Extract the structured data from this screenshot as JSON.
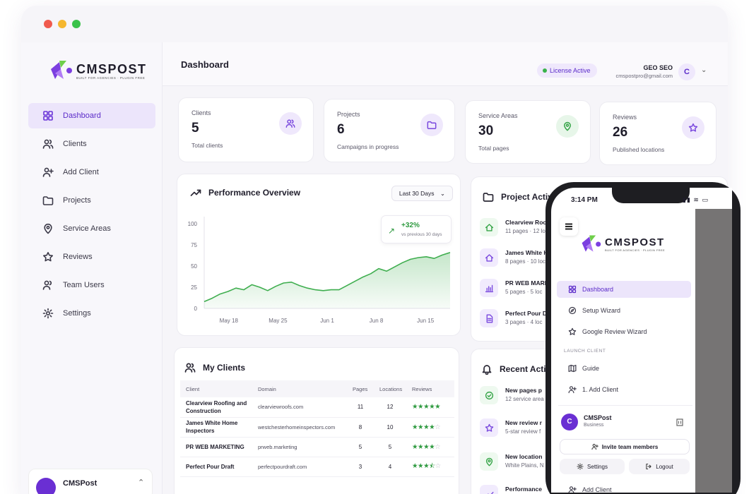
{
  "brand": {
    "name": "CMSPOST",
    "tagline": "BUILT FOR AGENCIES · PLUGIN FREE",
    "colors": {
      "primary": "#6a35d8",
      "accent": "#35a447"
    }
  },
  "sidebar": {
    "items": [
      {
        "label": "Dashboard",
        "icon": "grid-icon"
      },
      {
        "label": "Clients",
        "icon": "users-icon"
      },
      {
        "label": "Add Client",
        "icon": "user-plus-icon"
      },
      {
        "label": "Projects",
        "icon": "folder-icon"
      },
      {
        "label": "Service Areas",
        "icon": "map-pin-icon"
      },
      {
        "label": "Reviews",
        "icon": "star-icon"
      },
      {
        "label": "Team Users",
        "icon": "team-icon"
      },
      {
        "label": "Settings",
        "icon": "gear-icon"
      }
    ],
    "user": {
      "name": "CMSPost"
    }
  },
  "header": {
    "title": "Dashboard",
    "license": "License Active",
    "account": {
      "name": "GEO SEO",
      "email": "cmspostpro@gmail.com",
      "initial": "C"
    }
  },
  "stats": [
    {
      "label": "Clients",
      "value": "5",
      "sub": "Total clients"
    },
    {
      "label": "Projects",
      "value": "6",
      "sub": "Campaigns in progress"
    },
    {
      "label": "Service Areas",
      "value": "30",
      "sub": "Total pages"
    },
    {
      "label": "Reviews",
      "value": "26",
      "sub": "Published locations"
    }
  ],
  "performance": {
    "title": "Performance Overview",
    "range": "Last 30 Days",
    "growth": {
      "value": "+32%",
      "compare": "vs previous 30 days"
    }
  },
  "chart_data": {
    "type": "area",
    "title": "Performance Overview",
    "yticks": [
      "100",
      "75",
      "50",
      "25",
      "0"
    ],
    "xticks": [
      "May 18",
      "May 25",
      "Jun 1",
      "Jun 8",
      "Jun 15"
    ],
    "ylim": [
      0,
      100
    ],
    "values": [
      8,
      12,
      17,
      20,
      24,
      22,
      28,
      25,
      21,
      26,
      30,
      31,
      27,
      24,
      22,
      21,
      22,
      22,
      27,
      32,
      37,
      41,
      47,
      44,
      49,
      54,
      58,
      60,
      61,
      59,
      63,
      66
    ],
    "color": "#3fae4f",
    "grid": false
  },
  "project_activity": {
    "title": "Project Activity",
    "items": [
      {
        "name": "Clearview Roo",
        "detail": "11 pages · 12 loc"
      },
      {
        "name": "James White H",
        "detail": "8 pages · 10 loc"
      },
      {
        "name": "PR WEB MARK",
        "detail": "5 pages · 5 loc"
      },
      {
        "name": "Perfect Pour D",
        "detail": "3 pages · 4 loc"
      }
    ]
  },
  "clients": {
    "title": "My Clients",
    "columns": [
      "Client",
      "Domain",
      "Pages",
      "Locations",
      "Reviews"
    ],
    "rows": [
      {
        "client": "Clearview Roofing and Construction",
        "domain": "clearviewroofs.com",
        "pages": "11",
        "locations": "12",
        "rating": 5
      },
      {
        "client": "James White Home Inspectors",
        "domain": "westchesterhomeinspectors.com",
        "pages": "8",
        "locations": "10",
        "rating": 4
      },
      {
        "client": "PR WEB MARKETING",
        "domain": "prweb.marketing",
        "pages": "5",
        "locations": "5",
        "rating": 4
      },
      {
        "client": "Perfect Pour Draft",
        "domain": "perfectpourdraft.com",
        "pages": "3",
        "locations": "4",
        "rating": 3.5
      }
    ]
  },
  "recent_activity": {
    "title": "Recent Activi",
    "items": [
      {
        "title": "New pages p",
        "detail": "12 service area"
      },
      {
        "title": "New review r",
        "detail": "5-star review f"
      },
      {
        "title": "New location",
        "detail": "White Plains, N"
      },
      {
        "title": "Performance",
        "detail": ""
      }
    ]
  },
  "phone": {
    "time": "3:14 PM",
    "nav": [
      "Dashboard",
      "Setup Wizard",
      "Google Review Wizard"
    ],
    "section": "LAUNCH CLIENT",
    "launch": [
      "Guide",
      "1. Add Client"
    ],
    "org": {
      "initial": "C",
      "name": "CMSPost",
      "type": "Business"
    },
    "invite": "Invite team members",
    "settings": "Settings",
    "logout": "Logout",
    "footer_item": "Add Client"
  }
}
